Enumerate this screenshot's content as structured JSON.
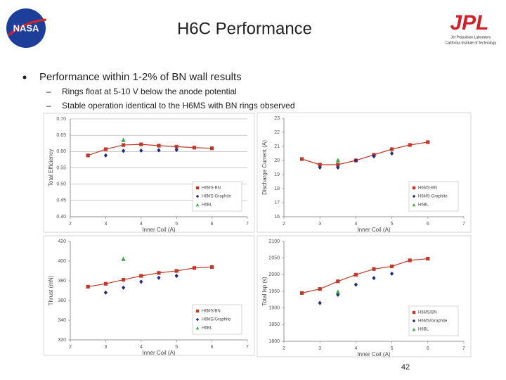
{
  "slide": {
    "title": "H6C Performance",
    "logo_left": "NASA",
    "logo_right": "JPL",
    "org_line1": "Jet Propulsion Laboratory",
    "org_line2": "California Institute of Technology",
    "bullet": "Performance within 1-2% of BN wall results",
    "sub_bullets": [
      "Rings float at 5-10 V below the anode potential",
      "Stable operation identical to the H6MS with BN rings observed"
    ],
    "page_number": "42"
  },
  "chart_data": [
    {
      "type": "scatter",
      "x_label": "Inner Coil (A)",
      "y_label": "Total Efficiency",
      "xlim": [
        2,
        7
      ],
      "xticks": [
        2,
        3,
        4,
        5,
        6,
        7
      ],
      "ylim": [
        0.4,
        0.7
      ],
      "yticks": [
        {
          "value": 0.4,
          "label": "0.40"
        },
        {
          "value": 0.45,
          "label": "0.45"
        },
        {
          "value": 0.5,
          "label": "0.50"
        },
        {
          "value": 0.55,
          "label": "0.55"
        },
        {
          "value": 0.6,
          "label": "0.60"
        },
        {
          "value": 0.65,
          "label": "0.65"
        },
        {
          "value": 0.7,
          "label": "0.70"
        }
      ],
      "grid": true,
      "legend": "lower right",
      "series": [
        {
          "name": "H6MS-BN",
          "color": "#c0392b",
          "marker": "square",
          "line": true,
          "x": [
            2.5,
            3,
            3.5,
            4,
            4.5,
            5,
            5.5,
            6
          ],
          "values": [
            0.588,
            0.607,
            0.62,
            0.622,
            0.618,
            0.615,
            0.612,
            0.61
          ]
        },
        {
          "name": "H6MS-Graphite",
          "color": "#1f2a80",
          "marker": "diamond",
          "line": false,
          "x": [
            3,
            3.5,
            4,
            4.5,
            5
          ],
          "values": [
            0.588,
            0.602,
            0.603,
            0.604,
            0.605
          ]
        },
        {
          "name": "H6BL",
          "color": "#3aa845",
          "marker": "triangle",
          "line": false,
          "x": [
            3.5
          ],
          "values": [
            0.635
          ]
        }
      ]
    },
    {
      "type": "scatter",
      "x_label": "Inner Coil (A)",
      "y_label": "Discharge Current (A)",
      "xlim": [
        2,
        7
      ],
      "xticks": [
        2,
        3,
        4,
        5,
        6,
        7
      ],
      "ylim": [
        16,
        23
      ],
      "yticks": [
        16,
        17,
        18,
        19,
        20,
        21,
        22,
        23
      ],
      "grid": false,
      "legend": "lower right",
      "series": [
        {
          "name": "H6MS-BN",
          "color": "#c0392b",
          "marker": "square",
          "line": true,
          "x": [
            2.5,
            3,
            3.5,
            4,
            4.5,
            5,
            5.5,
            6
          ],
          "values": [
            20.1,
            19.7,
            19.7,
            20.0,
            20.4,
            20.8,
            21.1,
            21.3
          ]
        },
        {
          "name": "H6MS-Graphite",
          "color": "#1f2a80",
          "marker": "diamond",
          "line": false,
          "x": [
            3,
            3.5,
            4,
            4.5,
            5
          ],
          "values": [
            19.5,
            19.5,
            20.0,
            20.3,
            20.5
          ]
        },
        {
          "name": "H6BL",
          "color": "#3aa845",
          "marker": "triangle",
          "line": false,
          "x": [
            3.5
          ],
          "values": [
            20.0
          ]
        }
      ]
    },
    {
      "type": "scatter",
      "x_label": "Inner Coil (A)",
      "y_label": "Thrust (mN)",
      "xlim": [
        2,
        7
      ],
      "xticks": [
        2,
        3,
        4,
        5,
        6,
        7
      ],
      "ylim": [
        320,
        420
      ],
      "yticks": [
        320,
        340,
        360,
        380,
        400,
        420
      ],
      "grid": false,
      "legend": "lower right",
      "series": [
        {
          "name": "H6MS/BN",
          "color": "#c0392b",
          "marker": "square",
          "line": true,
          "x": [
            2.5,
            3,
            3.5,
            4,
            4.5,
            5,
            5.5,
            6
          ],
          "values": [
            374,
            377,
            381,
            385,
            388,
            390,
            393,
            394
          ]
        },
        {
          "name": "H6MS/Graphite",
          "color": "#1f2a80",
          "marker": "diamond",
          "line": false,
          "x": [
            3,
            3.5,
            4,
            4.5,
            5
          ],
          "values": [
            368,
            373,
            379,
            383,
            385
          ]
        },
        {
          "name": "H6BL",
          "color": "#3aa845",
          "marker": "triangle",
          "line": false,
          "x": [
            3.5
          ],
          "values": [
            402
          ]
        }
      ]
    },
    {
      "type": "scatter",
      "x_label": "Inner Coil (A)",
      "y_label": "Total Isp (s)",
      "xlim": [
        2,
        7
      ],
      "xticks": [
        2,
        3,
        4,
        5,
        6,
        7
      ],
      "ylim": [
        1800,
        2100
      ],
      "yticks": [
        1800,
        1850,
        1900,
        1950,
        2000,
        2050,
        2100
      ],
      "grid": false,
      "legend": "lower right",
      "series": [
        {
          "name": "H6MS/BN",
          "color": "#c0392b",
          "marker": "square",
          "line": true,
          "x": [
            2.5,
            3,
            3.5,
            4,
            4.5,
            5,
            5.5,
            6
          ],
          "values": [
            1945,
            1957,
            1980,
            2000,
            2017,
            2025,
            2043,
            2048
          ]
        },
        {
          "name": "H6MS/Graphite",
          "color": "#1f2a80",
          "marker": "diamond",
          "line": false,
          "x": [
            3,
            3.5,
            4,
            4.5,
            5
          ],
          "values": [
            1915,
            1940,
            1970,
            1990,
            2003
          ]
        },
        {
          "name": "H6BL",
          "color": "#3aa845",
          "marker": "triangle",
          "line": false,
          "x": [
            3.5
          ],
          "values": [
            1948
          ]
        }
      ]
    }
  ]
}
